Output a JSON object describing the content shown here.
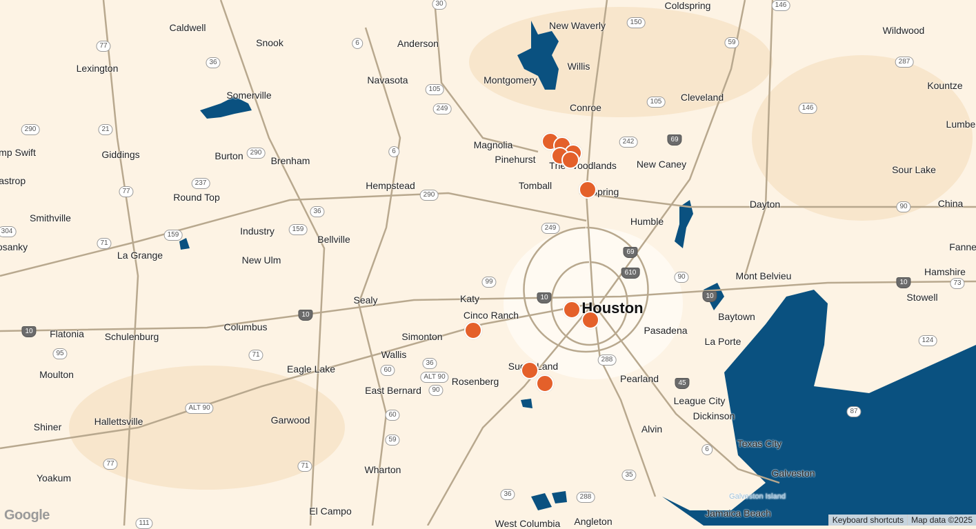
{
  "map": {
    "water_color": "#0a5180",
    "land_color": "#fdf3e4",
    "road_color": "#b8a88e",
    "marker_color": "#e4602a",
    "marker_count": 11
  },
  "places": [
    "Caldwell",
    "Snook",
    "Anderson",
    "New Waverly",
    "Coldspring",
    "Wildwood",
    "Lexington",
    "Navasota",
    "Montgomery",
    "Willis",
    "Somerville",
    "Conroe",
    "Cleveland",
    "Kountze",
    "Magnolia",
    "Pinehurst",
    "The Woodlands",
    "New Caney",
    "Giddings",
    "Burton",
    "Brenham",
    "Hempstead",
    "Tomball",
    "Spring",
    "Round Top",
    "Sour Lake",
    "Smithville",
    "Industry",
    "Bellville",
    "Humble",
    "Dayton",
    "China",
    "La Grange",
    "New Ulm",
    "Mont Belvieu",
    "Hamshire",
    "Sealy",
    "Katy",
    "Houston",
    "Stowell",
    "Cinco Ranch",
    "Columbus",
    "Flatonia",
    "Schulenburg",
    "Simonton",
    "Pasadena",
    "Baytown",
    "La Porte",
    "Wallis",
    "Sugar Land",
    "Eagle Lake",
    "Rosenberg",
    "East Bernard",
    "Pearland",
    "Moulton",
    "League City",
    "Dickinson",
    "Garwood",
    "Hallettsville",
    "Shiner",
    "Alvin",
    "Texas City",
    "Wharton",
    "Galveston",
    "Yoakum",
    "El Campo",
    "Angleton",
    "Jamaica Beach",
    "Lumberton",
    "Fannett",
    "mp Swift",
    "Bastrop",
    "osanky",
    "Galveston Island",
    "West Columbia"
  ],
  "highways": [
    "30",
    "150",
    "146",
    "6",
    "59",
    "287",
    "77",
    "36",
    "105",
    "249",
    "21",
    "290",
    "6",
    "242",
    "69",
    "105",
    "146",
    "290",
    "237",
    "77",
    "290",
    "36",
    "159",
    "71",
    "159",
    "249",
    "90",
    "69",
    "610",
    "90",
    "10",
    "73",
    "99",
    "10",
    "10",
    "10",
    "71",
    "36",
    "60",
    "90",
    "ALT 90",
    "288",
    "45",
    "124",
    "95",
    "ALT 90",
    "60",
    "59",
    "6",
    "87",
    "77",
    "71",
    "35",
    "36",
    "288",
    "304",
    "10",
    "111"
  ],
  "attribution": {
    "keyboard": "Keyboard shortcuts",
    "map_data": "Map data ©2025"
  },
  "logo": "Google"
}
